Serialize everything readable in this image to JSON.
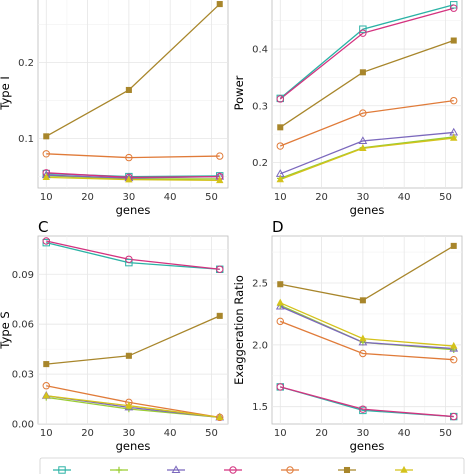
{
  "chart_data": [
    {
      "panel": "A",
      "type": "line",
      "panel_label": "",
      "xlabel": "genes",
      "ylabel": "Type I",
      "x": [
        10,
        30,
        52
      ],
      "xlim": [
        8,
        54
      ],
      "xticks": [
        10,
        20,
        30,
        40,
        50
      ],
      "ylim": [
        0.035,
        0.285
      ],
      "yticks": [
        0.1,
        0.2
      ],
      "ytick_labels": [
        "0.1",
        "0.2"
      ],
      "grid": true,
      "series": [
        {
          "color": "#2ab2a5",
          "marker": "square-open",
          "values": [
            0.054,
            0.05,
            0.051
          ]
        },
        {
          "color": "#9acd32",
          "marker": "plus",
          "values": [
            0.051,
            0.047,
            0.047
          ]
        },
        {
          "color": "#7b68bd",
          "marker": "triangle-open",
          "values": [
            0.052,
            0.048,
            0.05
          ]
        },
        {
          "color": "#d4327f",
          "marker": "circle-open",
          "values": [
            0.055,
            0.049,
            0.05
          ]
        },
        {
          "color": "#e07b39",
          "marker": "circle-open",
          "values": [
            0.08,
            0.075,
            0.077
          ]
        },
        {
          "color": "#a8862b",
          "marker": "square-filled",
          "values": [
            0.103,
            0.164,
            0.277
          ]
        },
        {
          "color": "#d4c21b",
          "marker": "triangle-filled",
          "values": [
            0.049,
            0.046,
            0.045
          ]
        }
      ]
    },
    {
      "panel": "B",
      "type": "line",
      "panel_label": "",
      "xlabel": "genes",
      "ylabel": "Power",
      "x": [
        10,
        30,
        52
      ],
      "xlim": [
        8,
        54
      ],
      "xticks": [
        10,
        20,
        30,
        40,
        50
      ],
      "ylim": [
        0.155,
        0.49
      ],
      "yticks": [
        0.2,
        0.3,
        0.4
      ],
      "ytick_labels": [
        "0.2",
        "0.3",
        "0.4"
      ],
      "grid": true,
      "series": [
        {
          "color": "#2ab2a5",
          "marker": "square-open",
          "values": [
            0.313,
            0.435,
            0.478
          ]
        },
        {
          "color": "#9acd32",
          "marker": "plus",
          "values": [
            0.172,
            0.226,
            0.245
          ]
        },
        {
          "color": "#7b68bd",
          "marker": "triangle-open",
          "values": [
            0.18,
            0.238,
            0.253
          ]
        },
        {
          "color": "#d4327f",
          "marker": "circle-open",
          "values": [
            0.312,
            0.428,
            0.472
          ]
        },
        {
          "color": "#e07b39",
          "marker": "circle-open",
          "values": [
            0.229,
            0.287,
            0.309
          ]
        },
        {
          "color": "#a8862b",
          "marker": "square-filled",
          "values": [
            0.262,
            0.359,
            0.415
          ]
        },
        {
          "color": "#d4c21b",
          "marker": "triangle-filled",
          "values": [
            0.17,
            0.225,
            0.243
          ]
        }
      ]
    },
    {
      "panel": "C",
      "type": "line",
      "panel_label": "C",
      "xlabel": "genes",
      "ylabel": "Type S",
      "x": [
        10,
        30,
        52
      ],
      "xlim": [
        8,
        54
      ],
      "xticks": [
        10,
        20,
        30,
        40,
        50
      ],
      "ylim": [
        0.0,
        0.113
      ],
      "yticks": [
        0.0,
        0.03,
        0.06,
        0.09
      ],
      "ytick_labels": [
        "0.00",
        "0.03",
        "0.06",
        "0.09"
      ],
      "grid": true,
      "series": [
        {
          "color": "#2ab2a5",
          "marker": "square-open",
          "values": [
            0.109,
            0.097,
            0.093
          ]
        },
        {
          "color": "#9acd32",
          "marker": "plus",
          "values": [
            0.016,
            0.009,
            0.004
          ]
        },
        {
          "color": "#7b68bd",
          "marker": "triangle-open",
          "values": [
            0.017,
            0.01,
            0.004
          ]
        },
        {
          "color": "#d4327f",
          "marker": "circle-open",
          "values": [
            0.11,
            0.099,
            0.093
          ]
        },
        {
          "color": "#e07b39",
          "marker": "circle-open",
          "values": [
            0.023,
            0.013,
            0.004
          ]
        },
        {
          "color": "#a8862b",
          "marker": "square-filled",
          "values": [
            0.036,
            0.041,
            0.065
          ]
        },
        {
          "color": "#d4c21b",
          "marker": "triangle-filled",
          "values": [
            0.017,
            0.011,
            0.004
          ]
        }
      ]
    },
    {
      "panel": "D",
      "type": "line",
      "panel_label": "D",
      "xlabel": "genes",
      "ylabel": "Exaggeration Ratio",
      "x": [
        10,
        30,
        52
      ],
      "xlim": [
        8,
        54
      ],
      "xticks": [
        10,
        20,
        30,
        40,
        50
      ],
      "ylim": [
        1.36,
        2.88
      ],
      "yticks": [
        1.5,
        2.0,
        2.5
      ],
      "ytick_labels": [
        "1.5",
        "2.0",
        "2.5"
      ],
      "grid": true,
      "series": [
        {
          "color": "#2ab2a5",
          "marker": "square-open",
          "values": [
            1.66,
            1.47,
            1.42
          ]
        },
        {
          "color": "#9acd32",
          "marker": "plus",
          "values": [
            2.32,
            2.02,
            1.96
          ]
        },
        {
          "color": "#7b68bd",
          "marker": "triangle-open",
          "values": [
            2.31,
            2.02,
            1.97
          ]
        },
        {
          "color": "#d4327f",
          "marker": "circle-open",
          "values": [
            1.66,
            1.48,
            1.42
          ]
        },
        {
          "color": "#e07b39",
          "marker": "circle-open",
          "values": [
            2.19,
            1.93,
            1.88
          ]
        },
        {
          "color": "#a8862b",
          "marker": "square-filled",
          "values": [
            2.49,
            2.36,
            2.8
          ]
        },
        {
          "color": "#d4c21b",
          "marker": "triangle-filled",
          "values": [
            2.34,
            2.05,
            1.99
          ]
        }
      ]
    }
  ],
  "legend": {
    "placement": "bottom",
    "entries": [
      {
        "color": "#2ab2a5",
        "marker": "square-open"
      },
      {
        "color": "#9acd32",
        "marker": "plus"
      },
      {
        "color": "#7b68bd",
        "marker": "triangle-open"
      },
      {
        "color": "#d4327f",
        "marker": "circle-open"
      },
      {
        "color": "#e07b39",
        "marker": "circle-open"
      },
      {
        "color": "#a8862b",
        "marker": "square-filled"
      },
      {
        "color": "#d4c21b",
        "marker": "triangle-filled"
      }
    ]
  }
}
